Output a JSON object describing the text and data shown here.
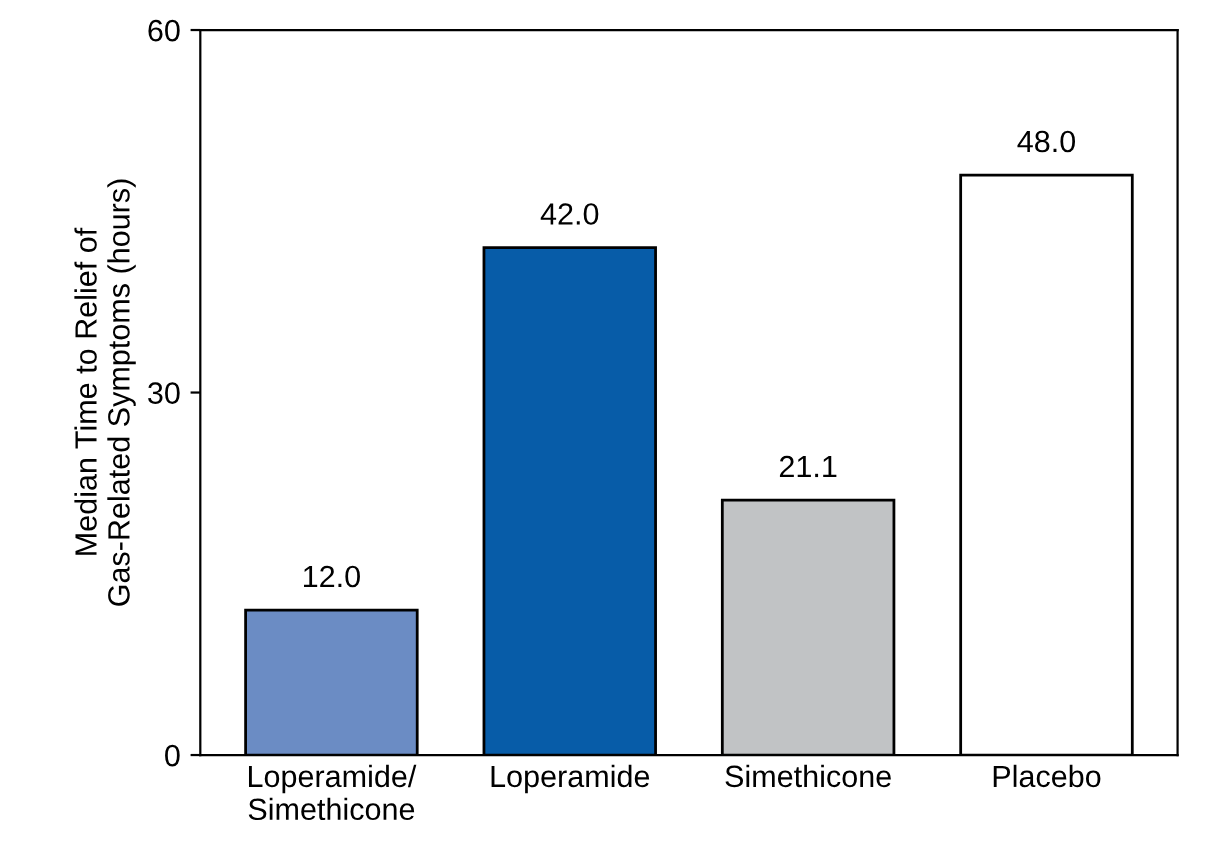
{
  "chart_data": {
    "type": "bar",
    "ylabel": "Median Time to Relief of\nGas-Related Symptoms (hours)",
    "categories": [
      "Loperamide/\nSimethicone",
      "Loperamide",
      "Simethicone",
      "Placebo"
    ],
    "values": [
      12.0,
      42.0,
      21.1,
      48.0
    ],
    "colors": [
      "#6b8cc4",
      "#075ca8",
      "#c1c3c5",
      "#ffffff"
    ],
    "value_labels": [
      "12.0",
      "42.0",
      "21.1",
      "48.0"
    ],
    "ylim": [
      0,
      60
    ],
    "yticks": [
      0,
      30,
      60
    ],
    "grid": false,
    "legend": false
  }
}
